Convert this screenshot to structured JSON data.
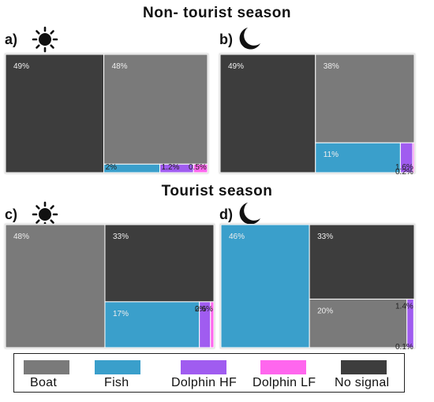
{
  "titles": {
    "non_tourist": "Non- tourist season",
    "tourist": "Tourist season"
  },
  "icons": {
    "day": "sun-icon",
    "night": "moon-icon"
  },
  "colors": {
    "Boat": "#7a7a7a",
    "Fish": "#3a9fcb",
    "Dolphin HF": "#a05cf0",
    "Dolphin LF": "#ff66ee",
    "No signal": "#3d3d3d"
  },
  "legend": [
    {
      "label": "Boat",
      "key": "Boat"
    },
    {
      "label": "Fish",
      "key": "Fish"
    },
    {
      "label": "Dolphin HF",
      "key": "Dolphin HF"
    },
    {
      "label": "Dolphin LF",
      "key": "Dolphin LF"
    },
    {
      "label": "No signal",
      "key": "No signal"
    }
  ],
  "chart_data": [
    {
      "type": "treemap",
      "panel": "a)",
      "season": "Non- tourist season",
      "time": "day",
      "values": [
        {
          "category": "No signal",
          "value": 49,
          "label": "49%"
        },
        {
          "category": "Boat",
          "value": 48,
          "label": "48%"
        },
        {
          "category": "Fish",
          "value": 2,
          "label": "2%"
        },
        {
          "category": "Dolphin HF",
          "value": 1.2,
          "label": "1.2%"
        },
        {
          "category": "Dolphin LF",
          "value": 0.5,
          "label": "0.5%"
        }
      ]
    },
    {
      "type": "treemap",
      "panel": "b)",
      "season": "Non- tourist season",
      "time": "night",
      "values": [
        {
          "category": "No signal",
          "value": 49,
          "label": "49%"
        },
        {
          "category": "Boat",
          "value": 38,
          "label": "38%"
        },
        {
          "category": "Fish",
          "value": 11,
          "label": "11%"
        },
        {
          "category": "Dolphin HF",
          "value": 1.6,
          "label": "1.6%"
        },
        {
          "category": "Dolphin LF",
          "value": 0.2,
          "label": "0.2%"
        }
      ]
    },
    {
      "type": "treemap",
      "panel": "c)",
      "season": "Tourist season",
      "time": "day",
      "values": [
        {
          "category": "Boat",
          "value": 48,
          "label": "48%"
        },
        {
          "category": "No signal",
          "value": 33,
          "label": "33%"
        },
        {
          "category": "Fish",
          "value": 17,
          "label": "17%"
        },
        {
          "category": "Dolphin HF",
          "value": 2,
          "label": "2%"
        },
        {
          "category": "Dolphin LF",
          "value": 0.6,
          "label": "0.6%"
        }
      ]
    },
    {
      "type": "treemap",
      "panel": "d)",
      "season": "Tourist season",
      "time": "night",
      "values": [
        {
          "category": "Fish",
          "value": 46,
          "label": "46%"
        },
        {
          "category": "No signal",
          "value": 33,
          "label": "33%"
        },
        {
          "category": "Boat",
          "value": 20,
          "label": "20%"
        },
        {
          "category": "Dolphin HF",
          "value": 1.4,
          "label": "1.4%"
        },
        {
          "category": "Dolphin LF",
          "value": 0.1,
          "label": "0.1%"
        }
      ]
    }
  ]
}
